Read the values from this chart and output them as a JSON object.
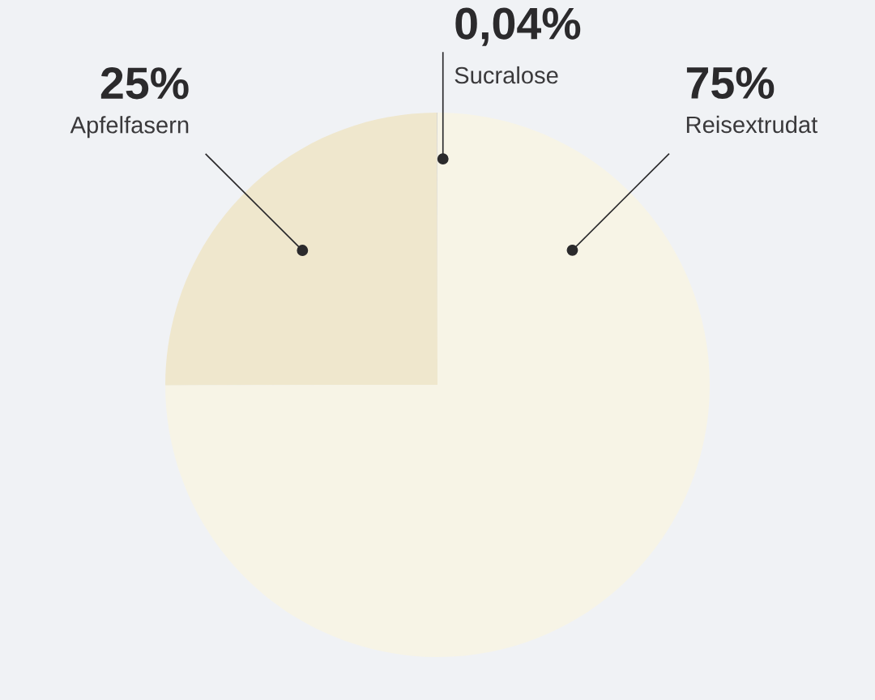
{
  "chart_data": {
    "type": "pie",
    "categories": [
      "Sucralose",
      "Apfelfasern",
      "Reisextrudat"
    ],
    "values": [
      0.04,
      25,
      75
    ],
    "colors": [
      "#cfcfcf",
      "#efe7cd",
      "#f7f4e6"
    ],
    "value_labels": [
      "0,04%",
      "25%",
      "75%"
    ]
  }
}
